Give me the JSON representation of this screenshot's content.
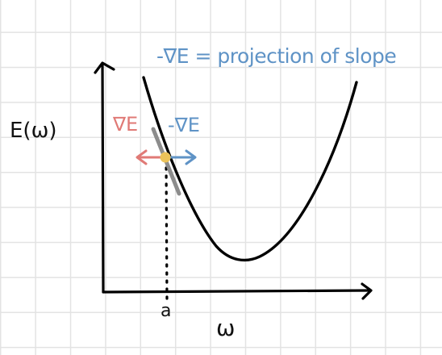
{
  "title": "-∇E = projection of slope",
  "y_axis_label": "E(ω)",
  "x_axis_label": "ω",
  "point_label": "a",
  "gradient_label": "∇E",
  "neg_gradient_label": "-∇E",
  "colors": {
    "gradient": "#e07a76",
    "neg_gradient": "#5f93c6",
    "point": "#ecc35a",
    "tangent": "#8c8c8c",
    "curve": "#000000",
    "grid": "#e3e3e3"
  }
}
